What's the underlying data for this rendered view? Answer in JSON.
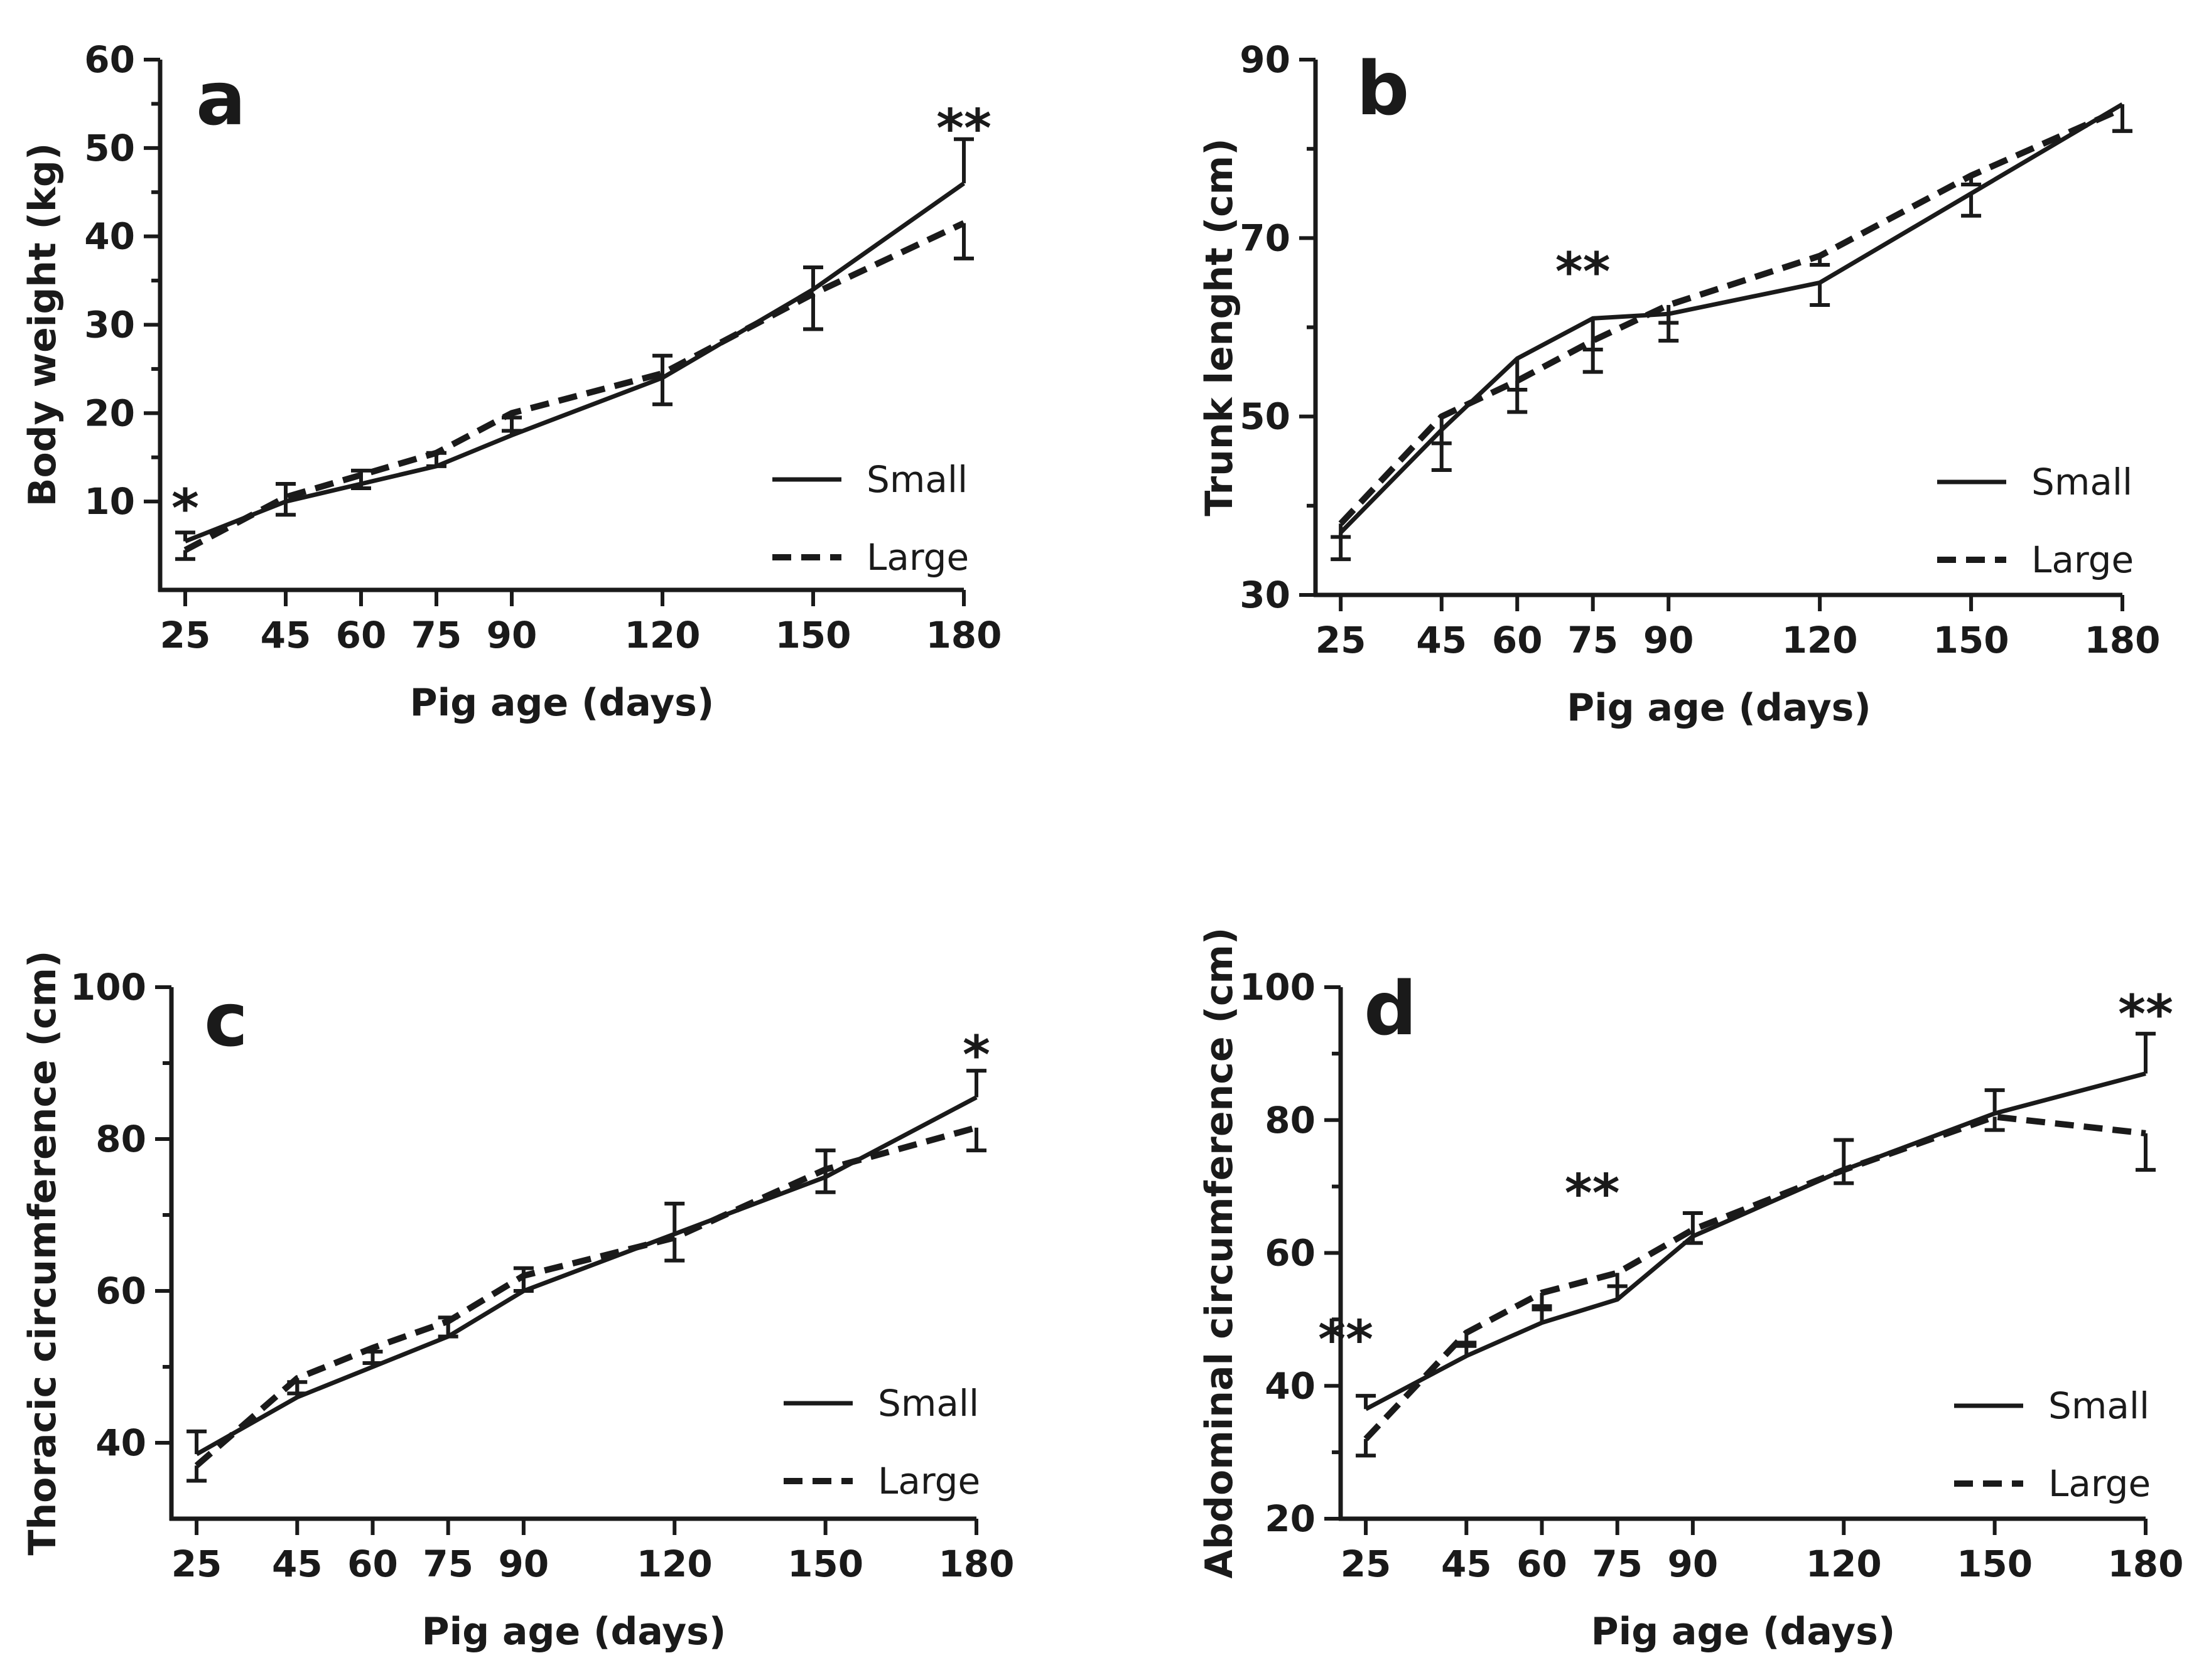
{
  "chart_data": [
    {
      "type": "line",
      "panel": "a",
      "title": "",
      "xlabel": "Pig age (days)",
      "ylabel": "Body weight (kg)",
      "x": [
        25,
        45,
        60,
        75,
        90,
        120,
        150,
        180
      ],
      "xlim": [
        20,
        180
      ],
      "ylim": [
        0,
        60
      ],
      "yticks": [
        10,
        20,
        30,
        40,
        50,
        60
      ],
      "ytick_labels": [
        "10",
        "20",
        "30",
        "40",
        "50",
        "60"
      ],
      "legend": "lower-right",
      "series": [
        {
          "name": "Small",
          "style": "solid",
          "values": [
            5.5,
            10,
            12,
            14,
            17.5,
            24,
            34,
            46
          ],
          "errors": [
            1.0,
            2.0,
            1.5,
            1.5,
            2.0,
            2.5,
            2.5,
            5.0
          ],
          "error_dir": "up"
        },
        {
          "name": "Large",
          "style": "dashed",
          "values": [
            4.5,
            10.5,
            13,
            15.5,
            20,
            24.5,
            33.5,
            41.5
          ],
          "errors": [
            1.0,
            2.0,
            1.5,
            1.5,
            2.0,
            3.5,
            4.0,
            4.0
          ],
          "error_dir": "down"
        }
      ],
      "annotations": [
        {
          "x": 25,
          "y": 10,
          "text": "*"
        },
        {
          "x": 180,
          "y": 53,
          "text": "**"
        }
      ]
    },
    {
      "type": "line",
      "panel": "b",
      "title": "",
      "xlabel": "Pig age (days)",
      "ylabel": "Trunk lenght (cm)",
      "x": [
        25,
        45,
        60,
        75,
        90,
        120,
        150,
        180
      ],
      "xlim": [
        20,
        180
      ],
      "ylim": [
        30,
        90
      ],
      "yticks": [
        30,
        50,
        70,
        90
      ],
      "ytick_labels": [
        "30",
        "50",
        "70",
        "90"
      ],
      "legend": "lower-right",
      "series": [
        {
          "name": "Small",
          "style": "solid",
          "values": [
            37,
            48.5,
            56.5,
            61,
            61.5,
            65,
            75,
            85
          ],
          "errors": [
            3.0,
            4.5,
            3.5,
            3.5,
            3.0,
            2.5,
            2.5,
            3.0
          ],
          "error_dir": "down"
        },
        {
          "name": "Large",
          "style": "dashed",
          "values": [
            38,
            50,
            54,
            58.5,
            62.5,
            68,
            77,
            84.5
          ],
          "errors": [
            1.5,
            3.0,
            3.5,
            3.5,
            2.0,
            1.0,
            1.0,
            2.5
          ],
          "error_dir": "down"
        }
      ],
      "annotations": [
        {
          "x": 73,
          "y": 67,
          "text": "**"
        }
      ]
    },
    {
      "type": "line",
      "panel": "c",
      "title": "",
      "xlabel": "Pig age (days)",
      "ylabel": "Thoracic circumference (cm)",
      "x": [
        25,
        45,
        60,
        75,
        90,
        120,
        150,
        180
      ],
      "xlim": [
        20,
        180
      ],
      "ylim": [
        30,
        100
      ],
      "yticks": [
        40,
        60,
        80,
        100
      ],
      "ytick_labels": [
        "40",
        "60",
        "80",
        "100"
      ],
      "legend": "lower-right",
      "series": [
        {
          "name": "Small",
          "style": "solid",
          "values": [
            38.5,
            46,
            50,
            54,
            60,
            67.5,
            75,
            85.5
          ],
          "errors": [
            3.0,
            2.0,
            2.0,
            2.5,
            3.0,
            4.0,
            3.5,
            3.5
          ],
          "error_dir": "up"
        },
        {
          "name": "Large",
          "style": "dashed",
          "values": [
            37,
            48.5,
            52.5,
            56,
            62,
            67,
            76,
            81.5
          ],
          "errors": [
            2.0,
            2.0,
            2.0,
            2.0,
            2.0,
            3.0,
            3.0,
            3.0
          ],
          "error_dir": "down"
        }
      ],
      "annotations": [
        {
          "x": 180,
          "y": 92,
          "text": "*"
        }
      ]
    },
    {
      "type": "line",
      "panel": "d",
      "title": "",
      "xlabel": "Pig age (days)",
      "ylabel": "Abdominal circumference (cm)",
      "x": [
        25,
        45,
        60,
        75,
        90,
        120,
        150,
        180
      ],
      "xlim": [
        20,
        180
      ],
      "ylim": [
        20,
        100
      ],
      "yticks": [
        20,
        40,
        60,
        80,
        100
      ],
      "ytick_labels": [
        "20",
        "40",
        "60",
        "80",
        "100"
      ],
      "legend": "lower-right",
      "series": [
        {
          "name": "Small",
          "style": "solid",
          "values": [
            36.5,
            44.5,
            49.5,
            53,
            62.5,
            72.5,
            81,
            87
          ],
          "errors": [
            2.0,
            2.0,
            2.0,
            2.0,
            3.5,
            4.5,
            3.5,
            6.0
          ],
          "error_dir": "up"
        },
        {
          "name": "Large",
          "style": "dashed",
          "values": [
            32,
            48,
            54,
            57,
            63.5,
            72.5,
            80.5,
            78
          ],
          "errors": [
            2.5,
            2.0,
            2.0,
            2.0,
            2.0,
            2.0,
            2.0,
            5.5
          ],
          "error_dir": "down"
        }
      ],
      "annotations": [
        {
          "x": 21,
          "y": 48,
          "text": "**"
        },
        {
          "x": 70,
          "y": 70,
          "text": "**"
        },
        {
          "x": 180,
          "y": 97,
          "text": "**"
        }
      ]
    }
  ]
}
